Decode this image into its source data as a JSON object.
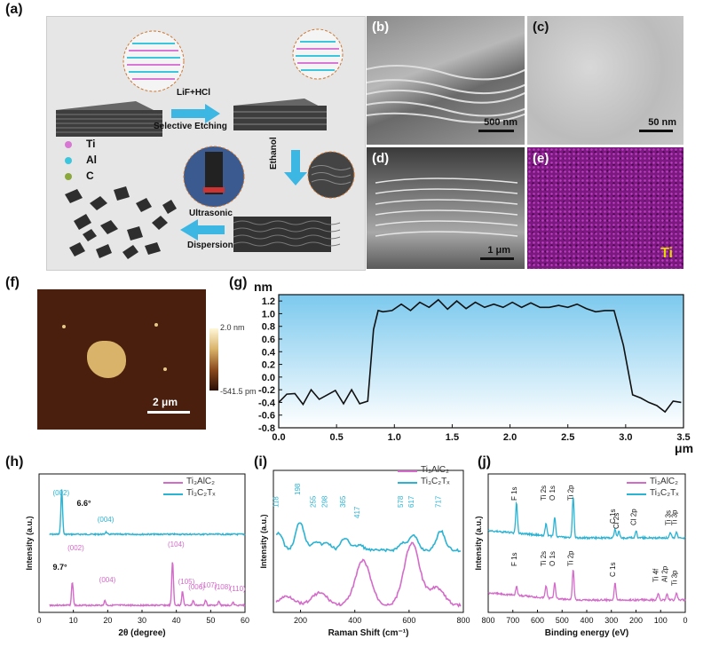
{
  "labels": {
    "a": "(a)",
    "b": "(b)",
    "c": "(c)",
    "d": "(d)",
    "e": "(e)",
    "f": "(f)",
    "g": "(g)",
    "h": "(h)",
    "i": "(i)",
    "j": "(j)"
  },
  "schematic": {
    "step1_reagent": "LiF+HCl",
    "step1_name": "Selective Etching",
    "step2": "Ethanol",
    "step3_a": "Ultrasonic",
    "step3_b": "Dispersion",
    "atoms": [
      {
        "name": "Ti",
        "color": "#d977d4"
      },
      {
        "name": "Al",
        "color": "#3cc6de"
      },
      {
        "name": "C",
        "color": "#8aa83c"
      }
    ]
  },
  "micrographs": {
    "b_scale": "500 nm",
    "c_scale": "50 nm",
    "d_scale": "1 μm",
    "e_element": "Ti"
  },
  "afm": {
    "scale_max": "2.0 nm",
    "scale_min": "-541.5 pm",
    "scale_bar": "2 μm"
  },
  "chart_data": [
    {
      "panel": "g",
      "type": "line",
      "xlabel": "μm",
      "ylabel": "nm",
      "xlim": [
        0,
        3.5
      ],
      "ylim": [
        -0.8,
        1.3
      ],
      "xticks": [
        "0.0",
        "0.5",
        "1.0",
        "1.5",
        "2.0",
        "2.5",
        "3.0",
        "3.5"
      ],
      "yticks": [
        "-0.8",
        "-0.6",
        "-0.4",
        "-0.2",
        "0.0",
        "0.2",
        "0.4",
        "0.6",
        "0.8",
        "1.0",
        "1.2"
      ],
      "x": [
        0.0,
        0.07,
        0.14,
        0.21,
        0.28,
        0.35,
        0.42,
        0.49,
        0.56,
        0.63,
        0.7,
        0.77,
        0.82,
        0.86,
        0.9,
        0.98,
        1.06,
        1.14,
        1.22,
        1.3,
        1.38,
        1.46,
        1.54,
        1.62,
        1.7,
        1.78,
        1.86,
        1.94,
        2.02,
        2.1,
        2.18,
        2.26,
        2.34,
        2.42,
        2.5,
        2.58,
        2.66,
        2.74,
        2.82,
        2.9,
        2.98,
        3.06,
        3.13,
        3.2,
        3.27,
        3.34,
        3.41,
        3.48
      ],
      "y": [
        -0.4,
        -0.27,
        -0.26,
        -0.43,
        -0.2,
        -0.35,
        -0.28,
        -0.21,
        -0.42,
        -0.2,
        -0.42,
        -0.38,
        0.75,
        1.05,
        1.03,
        1.05,
        1.15,
        1.05,
        1.18,
        1.1,
        1.22,
        1.07,
        1.2,
        1.08,
        1.18,
        1.1,
        1.15,
        1.1,
        1.18,
        1.1,
        1.17,
        1.1,
        1.1,
        1.13,
        1.1,
        1.15,
        1.08,
        1.03,
        1.05,
        1.05,
        0.5,
        -0.28,
        -0.33,
        -0.4,
        -0.45,
        -0.55,
        -0.38,
        -0.4
      ]
    },
    {
      "panel": "h",
      "type": "line",
      "xlabel": "2θ (degree)",
      "ylabel": "Intensity (a.u.)",
      "xlim": [
        0,
        60
      ],
      "xticks": [
        "0",
        "10",
        "20",
        "30",
        "40",
        "50",
        "60"
      ],
      "series": [
        {
          "name": "Ti₃AlC₂",
          "color": "#d46ac9",
          "peaks": [
            {
              "x": 9.7,
              "h": 0.5
            },
            {
              "x": 19.2,
              "h": 0.1
            },
            {
              "x": 38.9,
              "h": 0.95
            },
            {
              "x": 41.8,
              "h": 0.3
            },
            {
              "x": 44.9,
              "h": 0.1
            },
            {
              "x": 48.5,
              "h": 0.12
            },
            {
              "x": 52.4,
              "h": 0.08
            },
            {
              "x": 56.5,
              "h": 0.06
            }
          ],
          "annotations": [
            "9.7°",
            "(002)",
            "(004)",
            "(104)",
            "(105)",
            "(006)",
            "(107)",
            "(108)",
            "(110)"
          ]
        },
        {
          "name": "Ti₃C₂Tₓ",
          "color": "#2bb3d3",
          "peaks": [
            {
              "x": 6.6,
              "h": 1.0
            },
            {
              "x": 19.5,
              "h": 0.05
            }
          ],
          "annotations": [
            "6.6°",
            "(002)",
            "(004)"
          ]
        }
      ]
    },
    {
      "panel": "i",
      "type": "line",
      "xlabel": "Raman Shift (cm⁻¹)",
      "ylabel": "Intensity (a.u.)",
      "xlim": [
        100,
        800
      ],
      "xticks": [
        "200",
        "400",
        "600",
        "800"
      ],
      "series": [
        {
          "name": "Ti₃AlC₂",
          "color": "#d46ac9"
        },
        {
          "name": "Ti₃C₂Tₓ",
          "color": "#2bb3d3",
          "annotations": [
            "118",
            "198",
            "255",
            "298",
            "365",
            "417",
            "578",
            "617",
            "717"
          ]
        }
      ]
    },
    {
      "panel": "j",
      "type": "line",
      "xlabel": "Binding energy (eV)",
      "ylabel": "Intensity (a.u.)",
      "xlim": [
        800,
        0
      ],
      "xticks": [
        "800",
        "700",
        "600",
        "500",
        "400",
        "300",
        "200",
        "100",
        "0"
      ],
      "series": [
        {
          "name": "Ti₃AlC₂",
          "color": "#d46ac9",
          "annotations": [
            "F 1s",
            "Ti 2s",
            "O 1s",
            "Ti 2p",
            "C 1s",
            "Ti 4f",
            "Al 2p",
            "Ti 3p"
          ]
        },
        {
          "name": "Ti₃C₂Tₓ",
          "color": "#2bb3d3",
          "annotations": [
            "F 1s",
            "Ti 2s",
            "O 1s",
            "Ti 2p",
            "C 1s",
            "Cl 2s",
            "Cl 2p",
            "Ti 3s",
            "Ti 3p"
          ]
        }
      ]
    }
  ]
}
